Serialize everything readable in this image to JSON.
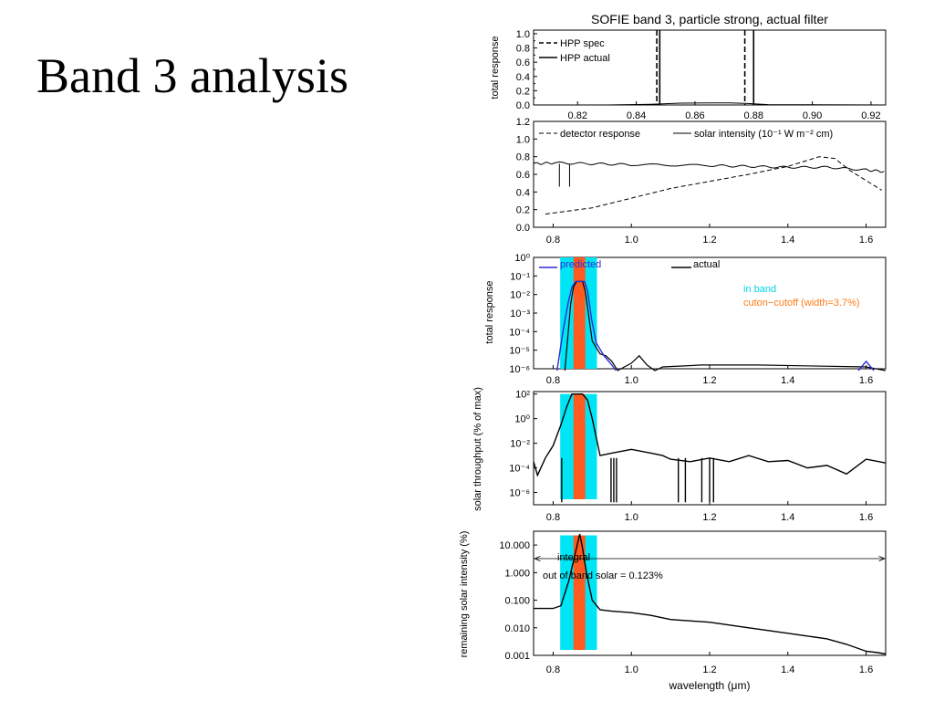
{
  "slide": {
    "title": "Band 3 analysis"
  },
  "colors": {
    "cyan": "#00e5f5",
    "orange": "#ff5a1f",
    "blue": "#2b2bd6",
    "black": "#000000",
    "orange_text": "#ff7a1a"
  },
  "chart_data": [
    {
      "type": "line",
      "title": "SOFIE band   3, particle strong, actual filter",
      "ylabel": "total response",
      "xlim": [
        0.805,
        0.925
      ],
      "ylim": [
        0.0,
        1.05
      ],
      "xticks": [
        "0.82",
        "0.84",
        "0.86",
        "0.88",
        "0.90",
        "0.92"
      ],
      "yticks": [
        "0.0",
        "0.2",
        "0.4",
        "0.6",
        "0.8",
        "1.0"
      ],
      "legend": [
        "HPP spec",
        "HPP actual"
      ],
      "vlines": {
        "HPP spec": [
          0.847,
          0.877
        ],
        "HPP actual": [
          0.848,
          0.88
        ]
      },
      "series": [
        {
          "name": "HPP actual",
          "x": [
            0.805,
            0.83,
            0.845,
            0.855,
            0.865,
            0.872,
            0.878,
            0.885,
            0.925
          ],
          "y": [
            0,
            0,
            0.01,
            0.025,
            0.03,
            0.03,
            0.02,
            0.005,
            0
          ]
        }
      ]
    },
    {
      "type": "line",
      "legend": [
        "detector response",
        "solar intensity (10⁻¹ W m⁻² cm)"
      ],
      "xlim": [
        0.75,
        1.65
      ],
      "ylim": [
        0.0,
        1.2
      ],
      "xticks": [
        "0.8",
        "1.0",
        "1.2",
        "1.4",
        "1.6"
      ],
      "yticks": [
        "0.0",
        "0.2",
        "0.4",
        "0.6",
        "0.8",
        "1.0",
        "1.2"
      ],
      "series": [
        {
          "name": "detector response",
          "x": [
            0.78,
            0.9,
            1.0,
            1.1,
            1.2,
            1.3,
            1.4,
            1.48,
            1.52,
            1.56,
            1.64
          ],
          "y": [
            0.15,
            0.22,
            0.33,
            0.44,
            0.52,
            0.6,
            0.69,
            0.8,
            0.78,
            0.64,
            0.42
          ]
        },
        {
          "name": "solar intensity (10⁻¹ W m⁻² cm)",
          "x": [
            0.75,
            0.8,
            0.9,
            1.0,
            1.2,
            1.3,
            1.4,
            1.5,
            1.6,
            1.65
          ],
          "y": [
            0.72,
            0.73,
            0.72,
            0.71,
            0.7,
            0.69,
            0.68,
            0.68,
            0.65,
            0.63
          ]
        }
      ]
    },
    {
      "type": "line",
      "ylabel": "total response",
      "xlim": [
        0.75,
        1.65
      ],
      "ylog": true,
      "ylim_exp": [
        -6,
        0
      ],
      "xticks": [
        "0.8",
        "1.0",
        "1.2",
        "1.4",
        "1.6"
      ],
      "yticks": [
        "10⁰",
        "10⁻¹",
        "10⁻²",
        "10⁻³",
        "10⁻⁴",
        "10⁻⁵",
        "10⁻⁶"
      ],
      "legend": [
        "predicted",
        "actual"
      ],
      "annotations": [
        "in band",
        "cuton−cutoff (width=3.7%)"
      ],
      "series": [
        {
          "name": "predicted",
          "x": [
            0.81,
            0.825,
            0.838,
            0.848,
            0.858,
            0.87,
            0.88,
            0.888,
            0.898,
            0.91,
            0.93,
            0.95,
            0.96,
            1.58,
            1.6,
            1.62
          ],
          "y_exp": [
            -6.1,
            -4.0,
            -2.5,
            -1.6,
            -1.3,
            -1.3,
            -1.3,
            -1.8,
            -3.3,
            -4.6,
            -5.3,
            -5.8,
            -6.1,
            -6.1,
            -5.6,
            -6.1
          ]
        },
        {
          "name": "actual",
          "x": [
            0.83,
            0.845,
            0.852,
            0.86,
            0.875,
            0.882,
            0.89,
            0.9,
            0.92,
            0.935,
            0.95,
            0.965,
            1.0,
            1.02,
            1.04,
            1.06,
            1.08,
            1.18,
            1.32,
            1.6,
            1.65
          ],
          "y_exp": [
            -6.1,
            -2.5,
            -1.6,
            -1.3,
            -1.3,
            -1.8,
            -3.0,
            -4.5,
            -5.2,
            -5.3,
            -5.6,
            -6.1,
            -5.7,
            -5.3,
            -5.8,
            -6.1,
            -5.9,
            -5.8,
            -5.8,
            -5.9,
            -6.1
          ]
        }
      ],
      "in_band": [
        0.818,
        0.912
      ],
      "cuton_cutoff": [
        0.852,
        0.882
      ]
    },
    {
      "type": "line",
      "ylabel": "solar throughput (% of max)",
      "xlim": [
        0.75,
        1.65
      ],
      "ylog": true,
      "ylim_exp": [
        -7,
        2.2
      ],
      "xticks": [
        "0.8",
        "1.0",
        "1.2",
        "1.4",
        "1.6"
      ],
      "yticks": [
        "10²",
        "10⁰",
        "10⁻²",
        "10⁻⁴",
        "10⁻⁶"
      ],
      "series": [
        {
          "name": "solar throughput",
          "x": [
            0.75,
            0.76,
            0.78,
            0.8,
            0.82,
            0.835,
            0.848,
            0.86,
            0.875,
            0.888,
            0.9,
            0.92,
            0.95,
            1.0,
            1.05,
            1.08,
            1.1,
            1.15,
            1.2,
            1.25,
            1.3,
            1.35,
            1.4,
            1.45,
            1.5,
            1.55,
            1.6,
            1.65
          ],
          "y_exp": [
            -3.5,
            -4.6,
            -3.2,
            -2.2,
            -0.5,
            1.0,
            2.0,
            2.0,
            2.0,
            1.5,
            0.0,
            -3.0,
            -2.8,
            -2.5,
            -2.8,
            -3.0,
            -3.3,
            -3.5,
            -3.2,
            -3.5,
            -3.0,
            -3.5,
            -3.4,
            -4.0,
            -3.8,
            -4.5,
            -3.3,
            -3.6
          ]
        }
      ],
      "in_band": [
        0.818,
        0.912
      ],
      "cuton_cutoff": [
        0.852,
        0.882
      ]
    },
    {
      "type": "line",
      "xlabel": "wavelength (μm)",
      "ylabel": "remaining solar intensity (%)",
      "xlim": [
        0.75,
        1.65
      ],
      "ylog": true,
      "ylim_exp": [
        -3,
        1.5
      ],
      "xticks": [
        "0.8",
        "1.0",
        "1.2",
        "1.4",
        "1.6"
      ],
      "yticks": [
        "10.000",
        "1.000",
        "0.100",
        "0.010",
        "0.001"
      ],
      "annotations": [
        "integral",
        "out of band solar = 0.123%"
      ],
      "series": [
        {
          "name": "remaining solar intensity",
          "x": [
            0.75,
            0.8,
            0.82,
            0.84,
            0.855,
            0.868,
            0.875,
            0.885,
            0.9,
            0.92,
            0.95,
            1.0,
            1.05,
            1.1,
            1.2,
            1.3,
            1.4,
            1.5,
            1.55,
            1.6,
            1.63,
            1.65
          ],
          "y_exp": [
            -1.3,
            -1.3,
            -1.2,
            -0.3,
            0.6,
            1.4,
            0.9,
            0.0,
            -1.0,
            -1.35,
            -1.4,
            -1.45,
            -1.55,
            -1.7,
            -1.8,
            -2.0,
            -2.2,
            -2.4,
            -2.6,
            -2.85,
            -2.9,
            -2.95
          ]
        }
      ],
      "in_band": [
        0.818,
        0.912
      ],
      "cuton_cutoff": [
        0.852,
        0.882
      ]
    }
  ]
}
